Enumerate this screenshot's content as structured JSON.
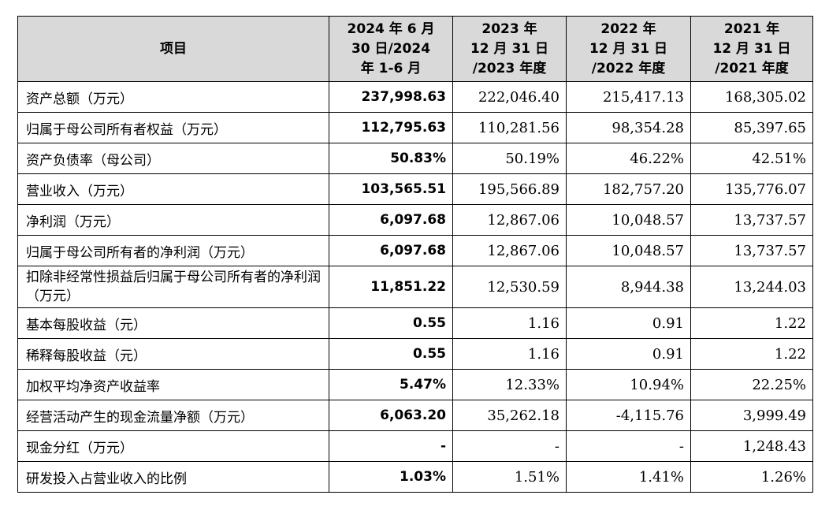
{
  "table": {
    "headers": [
      {
        "lines": [
          "项目"
        ]
      },
      {
        "lines": [
          "2024 年 6 月",
          "30 日/2024",
          "年 1-6 月"
        ]
      },
      {
        "lines": [
          "2023 年",
          "12 月 31 日",
          "/2023 年度"
        ]
      },
      {
        "lines": [
          "2022 年",
          "12 月 31 日",
          "/2022 年度"
        ]
      },
      {
        "lines": [
          "2021 年",
          "12 月 31 日",
          "/2021 年度"
        ]
      }
    ],
    "rows": [
      {
        "label": "资产总额（万元）",
        "values": [
          "237,998.63",
          "222,046.40",
          "215,417.13",
          "168,305.02"
        ]
      },
      {
        "label": "归属于母公司所有者权益（万元）",
        "values": [
          "112,795.63",
          "110,281.56",
          "98,354.28",
          "85,397.65"
        ]
      },
      {
        "label": "资产负债率（母公司）",
        "values": [
          "50.83%",
          "50.19%",
          "46.22%",
          "42.51%"
        ]
      },
      {
        "label": "营业收入（万元）",
        "values": [
          "103,565.51",
          "195,566.89",
          "182,757.20",
          "135,776.07"
        ]
      },
      {
        "label": "净利润（万元）",
        "values": [
          "6,097.68",
          "12,867.06",
          "10,048.57",
          "13,737.57"
        ]
      },
      {
        "label": "归属于母公司所有者的净利润（万元）",
        "values": [
          "6,097.68",
          "12,867.06",
          "10,048.57",
          "13,737.57"
        ]
      },
      {
        "label": "扣除非经常性损益后归属于母公司所有者的净利润（万元）",
        "values": [
          "11,851.22",
          "12,530.59",
          "8,944.38",
          "13,244.03"
        ]
      },
      {
        "label": "基本每股收益（元）",
        "values": [
          "0.55",
          "1.16",
          "0.91",
          "1.22"
        ]
      },
      {
        "label": "稀释每股收益（元）",
        "values": [
          "0.55",
          "1.16",
          "0.91",
          "1.22"
        ]
      },
      {
        "label": "加权平均净资产收益率",
        "values": [
          "5.47%",
          "12.33%",
          "10.94%",
          "22.25%"
        ]
      },
      {
        "label": "经营活动产生的现金流量净额（万元）",
        "values": [
          "6,063.20",
          "35,262.18",
          "-4,115.76",
          "3,999.49"
        ]
      },
      {
        "label": "现金分红（万元）",
        "values": [
          "-",
          "-",
          "-",
          "1,248.43"
        ]
      },
      {
        "label": "研发投入占营业收入的比例",
        "values": [
          "1.03%",
          "1.51%",
          "1.41%",
          "1.26%"
        ]
      }
    ]
  }
}
